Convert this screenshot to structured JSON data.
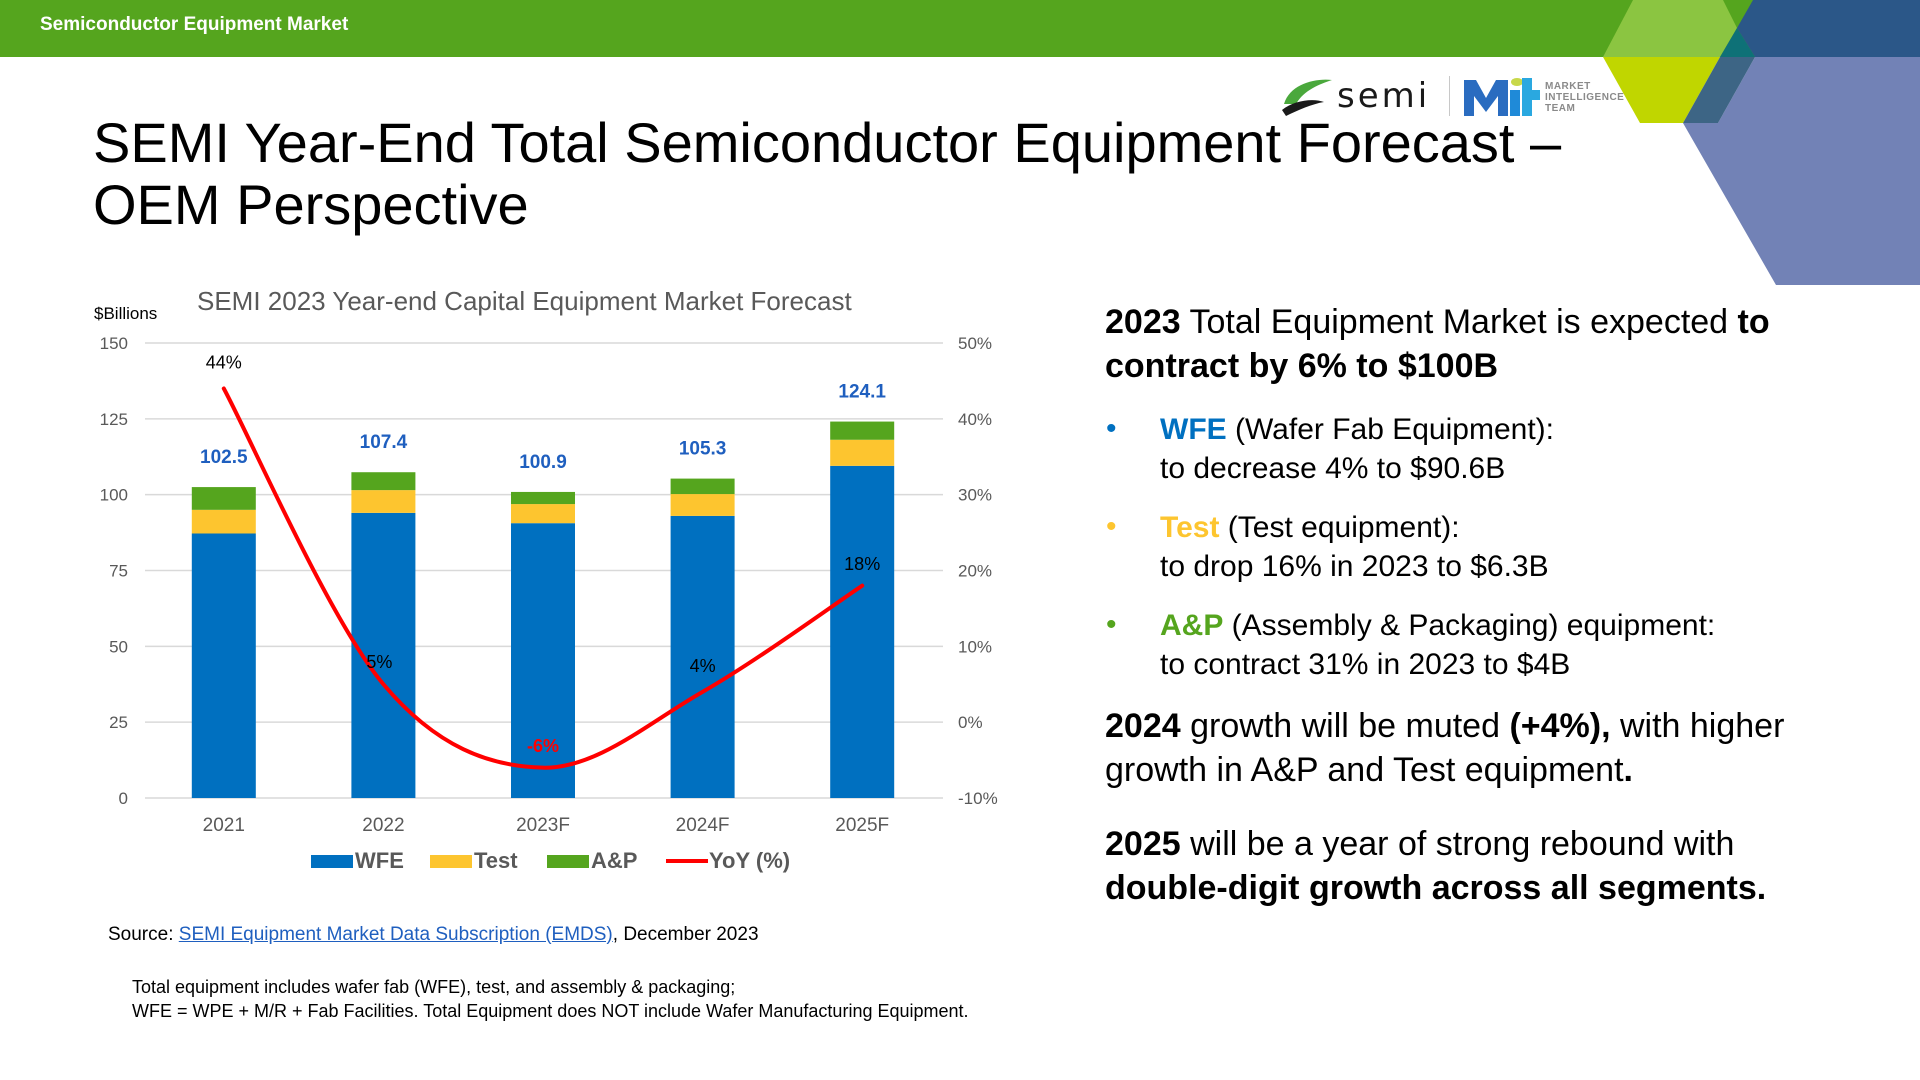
{
  "header": {
    "section_title": "Semiconductor Equipment Market",
    "brand_color": "#55a51e"
  },
  "logo": {
    "semi": "semi",
    "mit_lines": [
      "MARKET",
      "INTELLIGENCE",
      "TEAM"
    ]
  },
  "title": {
    "line1": "SEMI Year-End Total Semiconductor Equipment Forecast –",
    "line2": "OEM Perspective"
  },
  "chart_data": {
    "type": "bar",
    "stacked": true,
    "title": "SEMI 2023 Year-end Capital Equipment Market Forecast",
    "ylabel": "$Billions",
    "ylim": [
      0,
      150
    ],
    "yticks": [
      0,
      25,
      50,
      75,
      100,
      125,
      150
    ],
    "y2lim": [
      -10,
      50
    ],
    "y2ticks": [
      "-10%",
      "0%",
      "10%",
      "20%",
      "30%",
      "40%",
      "50%"
    ],
    "grid": true,
    "legend_position": "bottom",
    "categories": [
      "2021",
      "2022",
      "2023F",
      "2024F",
      "2025F"
    ],
    "series": [
      {
        "name": "WFE",
        "color": "#0070c0",
        "values": [
          87.2,
          94.0,
          90.6,
          93.0,
          109.5
        ]
      },
      {
        "name": "Test",
        "color": "#fdc52f",
        "values": [
          7.8,
          7.5,
          6.3,
          7.2,
          8.6
        ]
      },
      {
        "name": "A&P",
        "color": "#55a51e",
        "values": [
          7.5,
          5.9,
          4.0,
          5.1,
          6.0
        ]
      }
    ],
    "totals": [
      102.5,
      107.4,
      100.9,
      105.3,
      124.1
    ],
    "total_labels": [
      "102.5",
      "107.4",
      "100.9",
      "105.3",
      "124.1"
    ],
    "line_series": {
      "name": "YoY (%)",
      "color": "#ff0000",
      "axis": "secondary",
      "values": [
        44,
        5,
        -6,
        4,
        18
      ],
      "labels": [
        "44%",
        "5%",
        "-6%",
        "4%",
        "18%"
      ]
    }
  },
  "summary": {
    "headline_bold1": "2023",
    "headline_text": " Total Equipment Market is expected ",
    "headline_bold2": "to contract by 6% to $100B",
    "bullets": [
      {
        "key": "WFE",
        "color": "#0070c0",
        "desc": " (Wafer Fab Equipment):",
        "detail": "to decrease 4% to $90.6B"
      },
      {
        "key": "Test",
        "color": "#fdc52f",
        "desc": " (Test equipment):",
        "detail": "to drop 16% in 2023 to $6.3B"
      },
      {
        "key": "A&P",
        "color": "#55a51e",
        "desc": " (Assembly & Packaging) equipment:",
        "detail": "to contract 31% in 2023 to $4B"
      }
    ],
    "p2_bold1": "2024",
    "p2_text1": " growth will be muted ",
    "p2_bold2": "(+4%),",
    "p2_text2": " with higher growth in A&P and Test equipment",
    "p2_bold3": ".",
    "p3_bold1": "2025",
    "p3_text": " will be a year of strong rebound with ",
    "p3_bold2": "double-digit growth across all segments."
  },
  "source": {
    "prefix": "Source: ",
    "link_text": "SEMI Equipment Market Data Subscription (EMDS)",
    "suffix": ", December 2023"
  },
  "footnote": {
    "line1": "Total equipment includes wafer fab (WFE), test, and assembly & packaging;",
    "line2": "WFE = WPE + M/R + Fab Facilities. Total Equipment does NOT include Wafer Manufacturing Equipment."
  }
}
